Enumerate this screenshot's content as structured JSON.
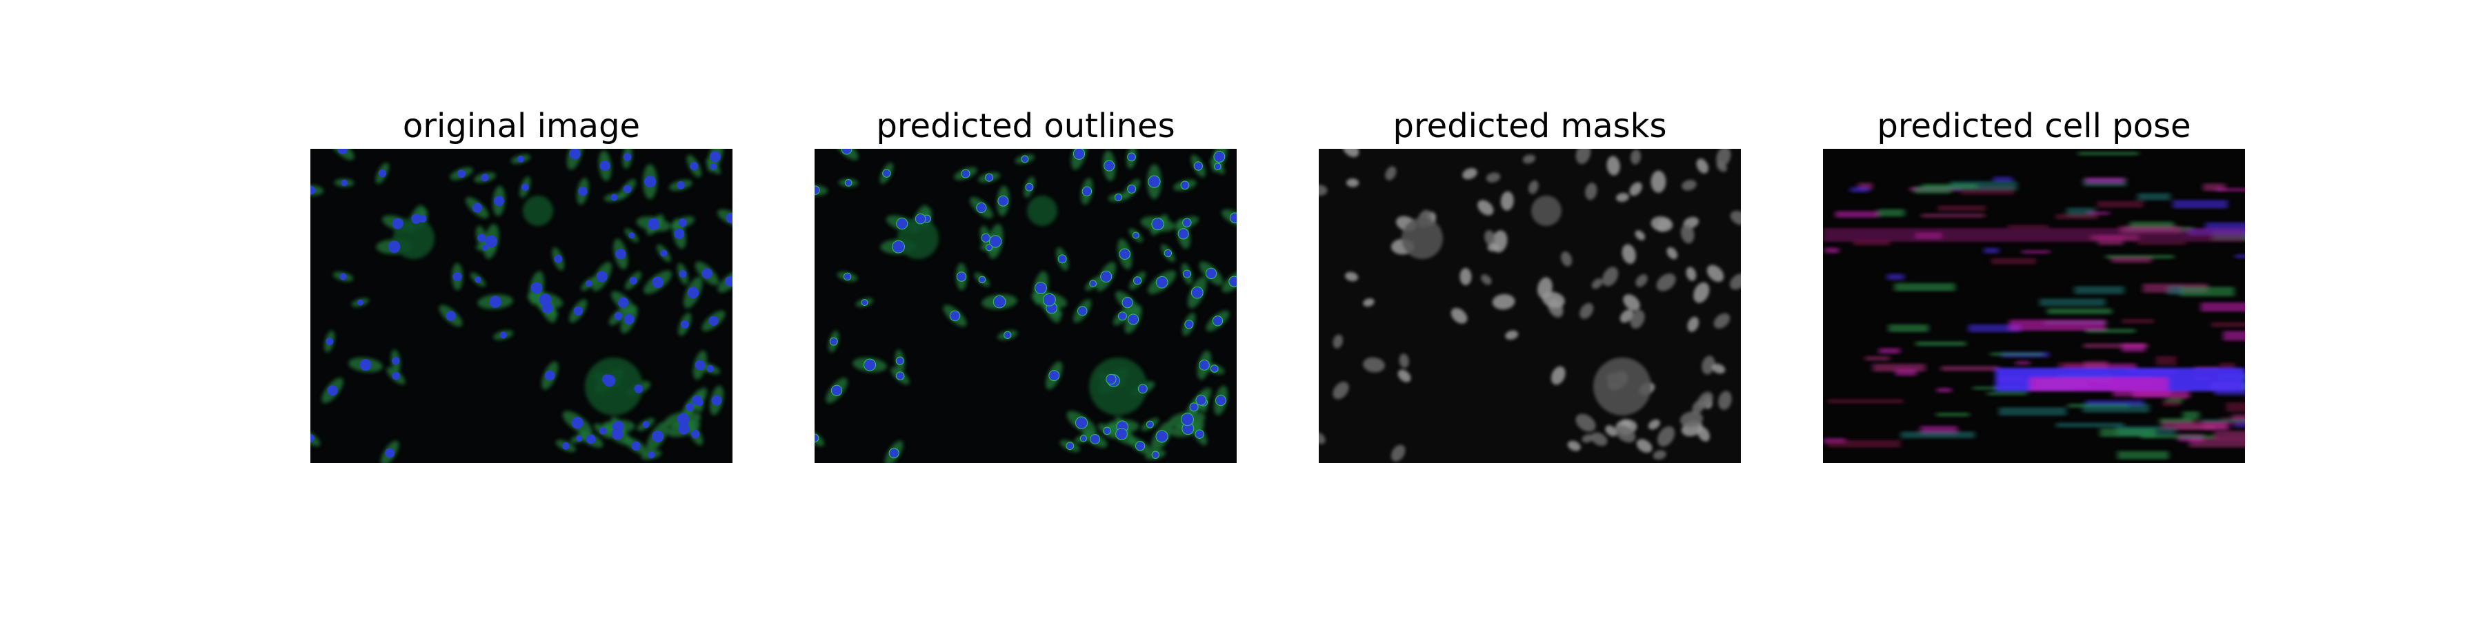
{
  "figure": {
    "panels": [
      {
        "title": "original image",
        "image_kind": "fluorescence-cells-rgb"
      },
      {
        "title": "predicted outlines",
        "image_kind": "fluorescence-cells-outlined"
      },
      {
        "title": "predicted masks",
        "image_kind": "grayscale-cell-masks"
      },
      {
        "title": "predicted cell pose",
        "image_kind": "flow-field-color"
      }
    ]
  },
  "colors": {
    "background": "#050607",
    "cytoplasm": "#1f7a3a",
    "nucleus": "#2a3fd0",
    "mask": "#9a9a9a",
    "flow_magenta": "#d020c0",
    "flow_blue": "#4a30ff",
    "flow_green": "#2ea050"
  }
}
